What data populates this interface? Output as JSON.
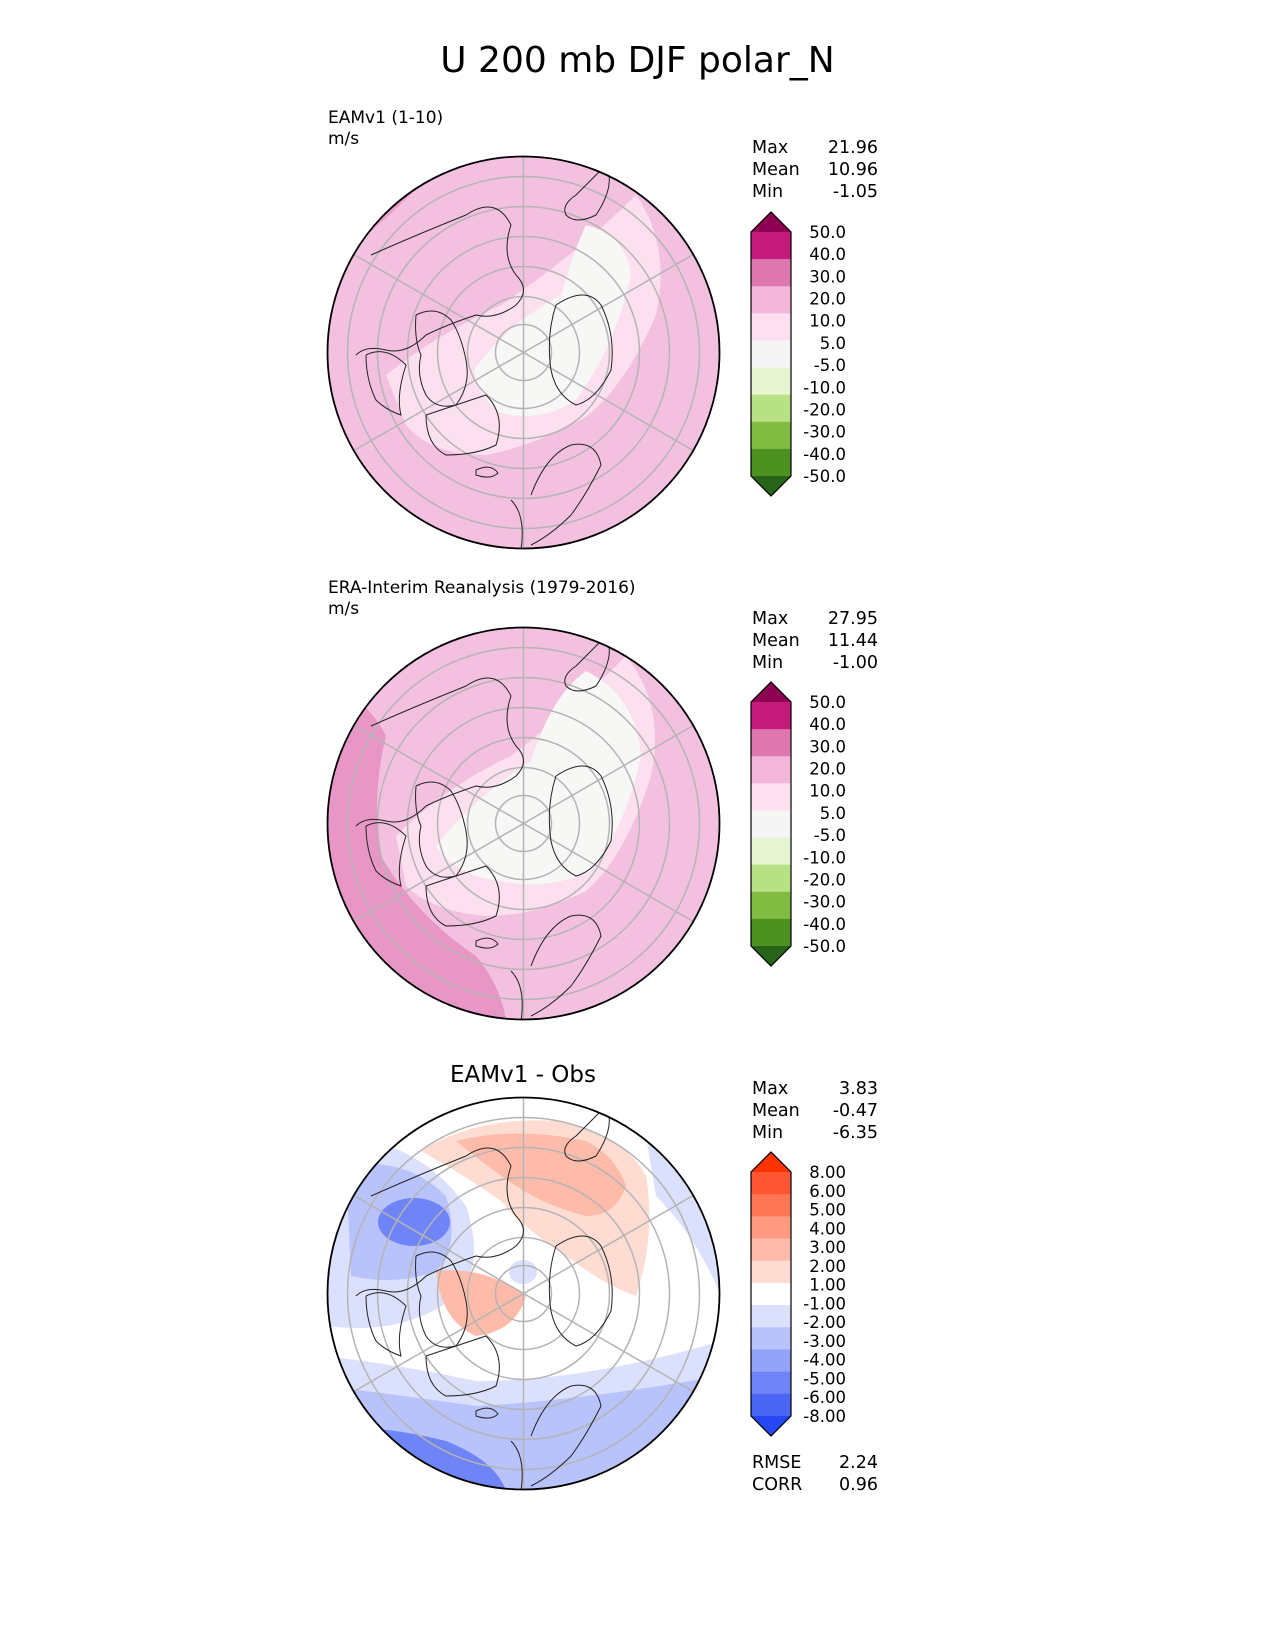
{
  "figure": {
    "title": "U 200 mb DJF polar_N"
  },
  "panels": [
    {
      "title": "EAMv1 (1-10)",
      "units": "m/s",
      "stats": [
        {
          "label": "Max",
          "value": "21.96"
        },
        {
          "label": "Mean",
          "value": "10.96"
        },
        {
          "label": "Min",
          "value": "-1.05"
        }
      ],
      "colorbar": {
        "tick_labels": [
          "50.0",
          "40.0",
          "30.0",
          "20.0",
          "10.0",
          "5.0",
          "-5.0",
          "-10.0",
          "-20.0",
          "-30.0",
          "-40.0",
          "-50.0"
        ],
        "colors": [
          "#8e0152",
          "#c51b7d",
          "#de77ae",
          "#f1b6da",
          "#fde0ef",
          "#f5f5f5",
          "#e6f5d0",
          "#b8e186",
          "#7fbc41",
          "#4d9221",
          "#276419"
        ]
      }
    },
    {
      "title": "ERA-Interim Reanalysis (1979-2016)",
      "units": "m/s",
      "stats": [
        {
          "label": "Max",
          "value": "27.95"
        },
        {
          "label": "Mean",
          "value": "11.44"
        },
        {
          "label": "Min",
          "value": "-1.00"
        }
      ],
      "colorbar": {
        "tick_labels": [
          "50.0",
          "40.0",
          "30.0",
          "20.0",
          "10.0",
          "5.0",
          "-5.0",
          "-10.0",
          "-20.0",
          "-30.0",
          "-40.0",
          "-50.0"
        ],
        "colors": [
          "#8e0152",
          "#c51b7d",
          "#de77ae",
          "#f1b6da",
          "#fde0ef",
          "#f5f5f5",
          "#e6f5d0",
          "#b8e186",
          "#7fbc41",
          "#4d9221",
          "#276419"
        ]
      }
    },
    {
      "title": "EAMv1 - Obs",
      "stats": [
        {
          "label": "Max",
          "value": "3.83"
        },
        {
          "label": "Mean",
          "value": "-0.47"
        },
        {
          "label": "Min",
          "value": "-6.35"
        }
      ],
      "metrics": [
        {
          "label": "RMSE",
          "value": "2.24"
        },
        {
          "label": "CORR",
          "value": "0.96"
        }
      ],
      "colorbar": {
        "tick_labels": [
          "8.00",
          "6.00",
          "5.00",
          "4.00",
          "3.00",
          "2.00",
          "1.00",
          "-1.00",
          "-2.00",
          "-3.00",
          "-4.00",
          "-5.00",
          "-6.00",
          "-8.00"
        ],
        "colors": [
          "#ff3300",
          "#ff5533",
          "#ff7755",
          "#ff9a80",
          "#ffbbaa",
          "#ffdcd2",
          "#ffffff",
          "#dbe1fd",
          "#b8c2fb",
          "#93a3f9",
          "#6f84f7",
          "#4b65f5",
          "#2747f3"
        ]
      }
    }
  ],
  "chart_data": [
    {
      "type": "heatmap",
      "title": "EAMv1 (1-10)",
      "projection": "north polar stereographic",
      "variable": "U 200 mb DJF",
      "units": "m/s",
      "stats": {
        "max": 21.96,
        "mean": 10.96,
        "min": -1.05
      },
      "levels": [
        -50,
        -40,
        -30,
        -20,
        -10,
        -5,
        5,
        10,
        20,
        30,
        40,
        50
      ],
      "fill_colors": [
        "#ee9dcb",
        "#f3c1df",
        "#fde0ef",
        "#f7f7f5"
      ]
    },
    {
      "type": "heatmap",
      "title": "ERA-Interim Reanalysis (1979-2016)",
      "projection": "north polar stereographic",
      "variable": "U 200 mb DJF",
      "units": "m/s",
      "stats": {
        "max": 27.95,
        "mean": 11.44,
        "min": -1.0
      },
      "levels": [
        -50,
        -40,
        -30,
        -20,
        -10,
        -5,
        5,
        10,
        20,
        30,
        40,
        50
      ],
      "fill_colors": [
        "#e796c5",
        "#f3c1df",
        "#fde0ef",
        "#f7f7f5"
      ]
    },
    {
      "type": "heatmap",
      "title": "EAMv1 - Obs",
      "projection": "north polar stereographic",
      "variable": "U 200 mb DJF difference",
      "stats": {
        "max": 3.83,
        "mean": -0.47,
        "min": -6.35
      },
      "rmse": 2.24,
      "corr": 0.96,
      "levels": [
        -8,
        -6,
        -5,
        -4,
        -3,
        -2,
        -1,
        1,
        2,
        3,
        4,
        5,
        6,
        8
      ],
      "fill_colors": [
        "#ffffff",
        "#dbe1fd",
        "#b8c2fb",
        "#93a3f9",
        "#6f84f7",
        "#4b65f5",
        "#ffdcd2",
        "#ffbbaa"
      ]
    }
  ]
}
